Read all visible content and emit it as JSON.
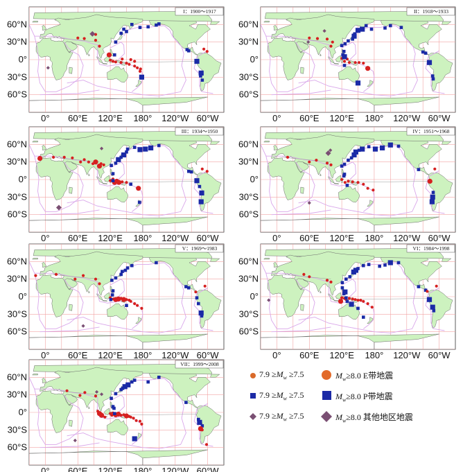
{
  "map": {
    "lat_labels": [
      "60°N",
      "30°N",
      "0°",
      "30°S",
      "60°S"
    ],
    "lon_labels": [
      "0°",
      "60°E",
      "120°E",
      "180°",
      "120°W",
      "60°W"
    ],
    "colors": {
      "ocean": "#ffffff",
      "land": "#cdf2bf",
      "coast": "#6a6a6a",
      "grid": "#f2a3a3",
      "plate_boundary": "#d9a6ea",
      "e_belt": "#d62020",
      "p_belt": "#1b2aa6",
      "other": "#7a4f73"
    }
  },
  "panels": [
    {
      "label": "I：1900～1917"
    },
    {
      "label": "II：1918～1933"
    },
    {
      "label": "III：1934～1950"
    },
    {
      "label": "IV：1951～1968"
    },
    {
      "label": "V：1969～1983"
    },
    {
      "label": "VI：1984～1998"
    },
    {
      "label": "VII：1999～2008"
    }
  ],
  "legend": {
    "rows": [
      {
        "small_prefix": "7.9 ≥",
        "small_m": "M",
        "small_sub": "w",
        "small_suffix": " ≥7.5",
        "big_prefix": "",
        "big_m": "M",
        "big_sub": "w",
        "big_suffix": "≥8.0 E带地震",
        "shape": "circle",
        "color": "#d96a2a"
      },
      {
        "small_prefix": "7.9 ≥",
        "small_m": "M",
        "small_sub": "w",
        "small_suffix": " ≥7.5",
        "big_prefix": "",
        "big_m": "M",
        "big_sub": "w",
        "big_suffix": "≥8.0 P带地震",
        "shape": "square",
        "color": "#1b2aa6"
      },
      {
        "small_prefix": "7.9 ≥",
        "small_m": "M",
        "small_sub": "w",
        "small_suffix": " ≥7.5",
        "big_prefix": "",
        "big_m": "M",
        "big_sub": "w",
        "big_suffix": "≥8.0 其他地区地震",
        "shape": "diamond",
        "color": "#7a4f73"
      }
    ]
  }
}
